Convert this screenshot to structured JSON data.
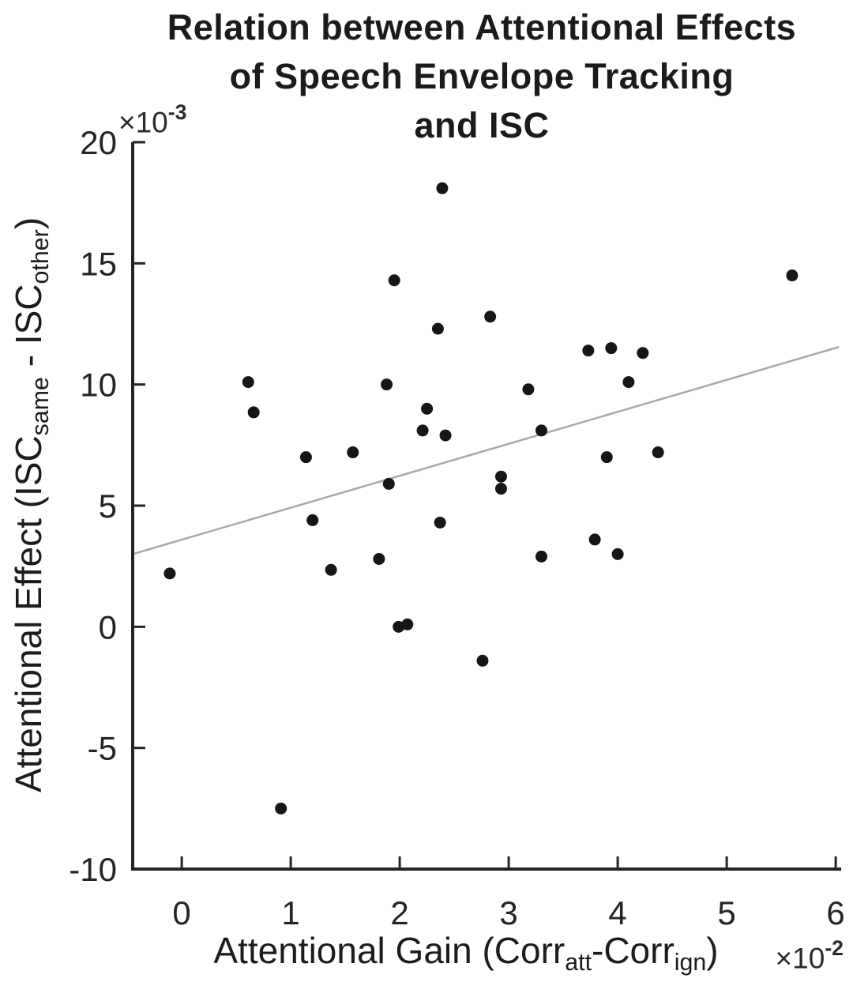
{
  "figure": {
    "background": "#ffffff"
  },
  "chart_data": {
    "type": "scatter",
    "title_lines": [
      "Relation between Attentional Effects",
      "of Speech Envelope Tracking",
      "and ISC"
    ],
    "x_axis": {
      "label_segments": [
        {
          "text": "Attentional Gain (Corr"
        },
        {
          "text": "att",
          "sub": true
        },
        {
          "text": "-Corr"
        },
        {
          "text": "ign",
          "sub": true
        },
        {
          "text": ")"
        }
      ],
      "multiplier": {
        "base": "×10",
        "exponent": "-2"
      },
      "ticks": [
        {
          "v": 0,
          "label": "0"
        },
        {
          "v": 1,
          "label": "1"
        },
        {
          "v": 2,
          "label": "2"
        },
        {
          "v": 3,
          "label": "3"
        },
        {
          "v": 4,
          "label": "4"
        },
        {
          "v": 5,
          "label": "5"
        },
        {
          "v": 6,
          "label": "6"
        }
      ],
      "range": [
        -0.45,
        6.05
      ]
    },
    "y_axis": {
      "label_segments": [
        {
          "text": "Attentional Effect (ISC"
        },
        {
          "text": "same",
          "sub": true
        },
        {
          "text": " - ISC"
        },
        {
          "text": "other",
          "sub": true
        },
        {
          "text": ")"
        }
      ],
      "multiplier": {
        "base": "×10",
        "exponent": "-3"
      },
      "ticks": [
        {
          "v": -10,
          "label": "-10"
        },
        {
          "v": -5,
          "label": "-5"
        },
        {
          "v": 0,
          "label": "0"
        },
        {
          "v": 5,
          "label": "5"
        },
        {
          "v": 10,
          "label": "10"
        },
        {
          "v": 15,
          "label": "15"
        },
        {
          "v": 20,
          "label": "20"
        }
      ],
      "range": [
        -10,
        20
      ]
    },
    "grid": false,
    "legend": false,
    "points": [
      [
        -0.11,
        2.2
      ],
      [
        0.61,
        10.1
      ],
      [
        0.66,
        8.85
      ],
      [
        0.91,
        -7.5
      ],
      [
        1.14,
        7.0
      ],
      [
        1.2,
        4.4
      ],
      [
        1.37,
        2.35
      ],
      [
        1.57,
        7.2
      ],
      [
        1.81,
        2.8
      ],
      [
        1.88,
        10.0
      ],
      [
        1.9,
        5.9
      ],
      [
        1.95,
        14.3
      ],
      [
        1.99,
        0.0
      ],
      [
        2.07,
        0.1
      ],
      [
        2.21,
        8.1
      ],
      [
        2.25,
        9.0
      ],
      [
        2.35,
        12.3
      ],
      [
        2.37,
        4.3
      ],
      [
        2.39,
        18.1
      ],
      [
        2.42,
        7.9
      ],
      [
        2.76,
        -1.4
      ],
      [
        2.83,
        12.8
      ],
      [
        2.93,
        6.2
      ],
      [
        2.93,
        5.7
      ],
      [
        3.18,
        9.8
      ],
      [
        3.3,
        8.1
      ],
      [
        3.3,
        2.9
      ],
      [
        3.73,
        11.4
      ],
      [
        3.79,
        3.6
      ],
      [
        3.9,
        7.0
      ],
      [
        3.94,
        11.5
      ],
      [
        4.0,
        3.0
      ],
      [
        4.1,
        10.1
      ],
      [
        4.23,
        11.3
      ],
      [
        4.37,
        7.2
      ],
      [
        5.6,
        14.5
      ]
    ],
    "trend_line": {
      "x1": -0.45,
      "y1": 3.0,
      "x2": 6.03,
      "y2": 11.55
    },
    "style": {
      "point_color": "#161616",
      "point_radius": 7.5,
      "trend_color": "#a9a9a9",
      "trend_width": 2.5,
      "axis_color": "#242424",
      "text_color": "#1c1c1c"
    }
  }
}
